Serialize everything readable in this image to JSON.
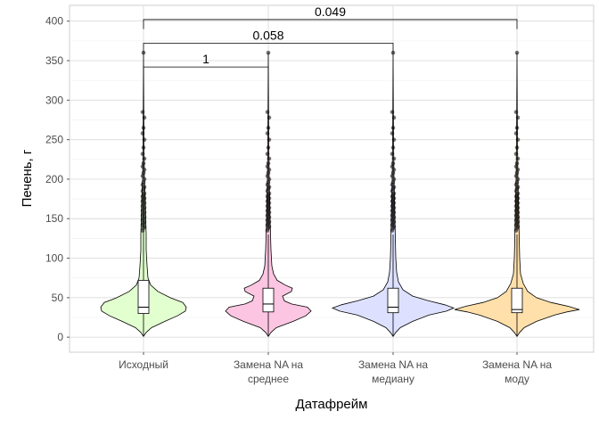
{
  "chart_data": {
    "type": "violin",
    "title": "",
    "xlabel": "Датафрейм",
    "ylabel": "Печень, г",
    "ylim": [
      -19,
      420
    ],
    "yticks": [
      0,
      50,
      100,
      150,
      200,
      250,
      300,
      350,
      400
    ],
    "categories": [
      {
        "label_lines": [
          "Исходный"
        ],
        "fill": "#e2ffcf",
        "stats": {
          "min": 1,
          "q1": 30,
          "median": 38,
          "q3": 72,
          "whisker_high": 135,
          "max": 360
        }
      },
      {
        "label_lines": [
          "Замена NA на",
          "среднее"
        ],
        "fill": "#fcc5e1",
        "stats": {
          "min": 1,
          "q1": 32,
          "median": 42,
          "q3": 62,
          "whisker_high": 130,
          "max": 360
        }
      },
      {
        "label_lines": [
          "Замена NA на",
          "медиану"
        ],
        "fill": "#dde1ff",
        "stats": {
          "min": 1,
          "q1": 31,
          "median": 38,
          "q3": 62,
          "whisker_high": 130,
          "max": 360
        }
      },
      {
        "label_lines": [
          "Замена NA на",
          "моду"
        ],
        "fill": "#ffe0aa",
        "stats": {
          "min": 1,
          "q1": 31,
          "median": 35,
          "q3": 62,
          "whisker_high": 130,
          "max": 360
        }
      }
    ],
    "significance": [
      {
        "from": 0,
        "to": 1,
        "y": 342,
        "label": "1"
      },
      {
        "from": 0,
        "to": 2,
        "y": 372,
        "label": "0.058"
      },
      {
        "from": 0,
        "to": 3,
        "y": 402,
        "label": "0.049"
      }
    ]
  }
}
